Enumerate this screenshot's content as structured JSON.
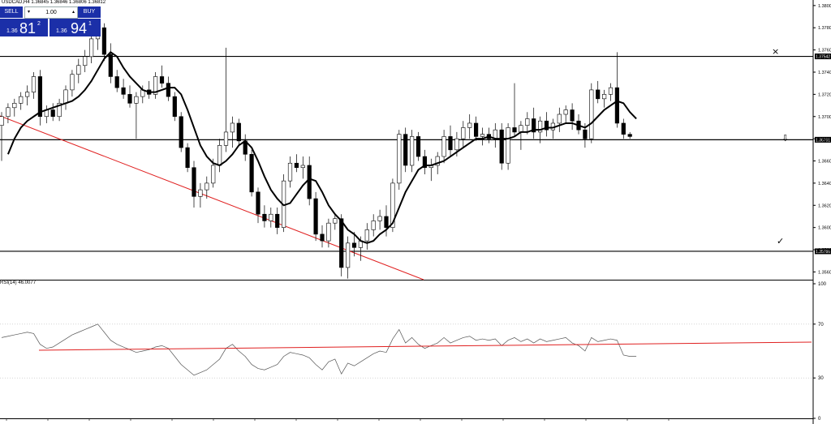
{
  "header": {
    "ticker": "USDCAD,H4  1.36845 1.36846 1.36806 1.36812"
  },
  "trade_panel": {
    "sell_label": "SELL",
    "buy_label": "BUY",
    "quantity": "1.00",
    "sell_price_small": "1.36",
    "sell_price_big": "81",
    "sell_price_sup": "2",
    "buy_price_small": "1.36",
    "buy_price_big": "94",
    "buy_price_sup": "1"
  },
  "indicator": {
    "label": "RSI(14) 46.0077",
    "levels": [
      "100",
      "70",
      "30",
      "0"
    ]
  },
  "markers": {
    "top_marker": "×",
    "bottom_marker": "✓",
    "mid_marker": "⇩"
  },
  "chart_data": {
    "type": "candlestick",
    "symbol": "USDCAD",
    "timeframe": "H4",
    "price_axis_ticks": [
      "1.38000",
      "1.37800",
      "1.37600",
      "1.37400",
      "1.37200",
      "1.37005",
      "1.36805",
      "1.36605",
      "1.36405",
      "1.36205",
      "1.36005",
      "1.35805",
      "1.35605"
    ],
    "horizontal_levels": [
      {
        "price": 1.37542,
        "label": "1.37542"
      },
      {
        "price": 1.36791,
        "label": "1.36791"
      },
      {
        "price": 1.35786,
        "label": "1.35786"
      }
    ],
    "rsi_levels": [
      100,
      70,
      30,
      0
    ],
    "rsi_current": 46.0077,
    "candles": [
      [
        1.3692,
        1.3704,
        1.366,
        1.37
      ],
      [
        1.37,
        1.3712,
        1.3694,
        1.3708
      ],
      [
        1.3708,
        1.3716,
        1.37,
        1.3712
      ],
      [
        1.3712,
        1.3722,
        1.3706,
        1.3718
      ],
      [
        1.3718,
        1.3728,
        1.371,
        1.3722
      ],
      [
        1.3722,
        1.374,
        1.3716,
        1.3736
      ],
      [
        1.3736,
        1.3742,
        1.3692,
        1.37
      ],
      [
        1.37,
        1.371,
        1.3694,
        1.3706
      ],
      [
        1.3706,
        1.3712,
        1.3696,
        1.37
      ],
      [
        1.37,
        1.3716,
        1.3696,
        1.3712
      ],
      [
        1.3712,
        1.3728,
        1.3706,
        1.3724
      ],
      [
        1.3724,
        1.3742,
        1.3718,
        1.3738
      ],
      [
        1.3738,
        1.3752,
        1.373,
        1.3746
      ],
      [
        1.3746,
        1.376,
        1.374,
        1.3754
      ],
      [
        1.3754,
        1.3776,
        1.3748,
        1.377
      ],
      [
        1.377,
        1.3786,
        1.376,
        1.378
      ],
      [
        1.378,
        1.3784,
        1.375,
        1.3756
      ],
      [
        1.3756,
        1.3766,
        1.373,
        1.3736
      ],
      [
        1.3736,
        1.3742,
        1.3722,
        1.3726
      ],
      [
        1.3726,
        1.3734,
        1.3716,
        1.372
      ],
      [
        1.372,
        1.3728,
        1.3708,
        1.3712
      ],
      [
        1.3712,
        1.3722,
        1.368,
        1.3718
      ],
      [
        1.3718,
        1.3728,
        1.3712,
        1.3724
      ],
      [
        1.3724,
        1.3732,
        1.3716,
        1.372
      ],
      [
        1.372,
        1.374,
        1.3716,
        1.3736
      ],
      [
        1.3736,
        1.3746,
        1.3726,
        1.373
      ],
      [
        1.373,
        1.3736,
        1.3714,
        1.3718
      ],
      [
        1.3718,
        1.3722,
        1.3696,
        1.37
      ],
      [
        1.37,
        1.3704,
        1.3668,
        1.3672
      ],
      [
        1.3672,
        1.3676,
        1.365,
        1.3654
      ],
      [
        1.3654,
        1.366,
        1.3618,
        1.3628
      ],
      [
        1.3628,
        1.364,
        1.3618,
        1.3634
      ],
      [
        1.3634,
        1.3646,
        1.3626,
        1.364
      ],
      [
        1.364,
        1.3662,
        1.3636,
        1.3656
      ],
      [
        1.3656,
        1.368,
        1.365,
        1.3674
      ],
      [
        1.3674,
        1.3762,
        1.3668,
        1.3686
      ],
      [
        1.3686,
        1.37,
        1.3672,
        1.3694
      ],
      [
        1.3694,
        1.3698,
        1.3674,
        1.3678
      ],
      [
        1.3678,
        1.3684,
        1.366,
        1.3666
      ],
      [
        1.3666,
        1.367,
        1.3628,
        1.3632
      ],
      [
        1.3632,
        1.3636,
        1.3604,
        1.3612
      ],
      [
        1.3612,
        1.362,
        1.36,
        1.3606
      ],
      [
        1.3606,
        1.3618,
        1.36,
        1.3612
      ],
      [
        1.3612,
        1.3618,
        1.3594,
        1.36
      ],
      [
        1.36,
        1.3648,
        1.3596,
        1.3642
      ],
      [
        1.3642,
        1.3664,
        1.3636,
        1.3658
      ],
      [
        1.3658,
        1.3666,
        1.365,
        1.3654
      ],
      [
        1.3654,
        1.3664,
        1.3644,
        1.3656
      ],
      [
        1.3656,
        1.3664,
        1.362,
        1.3626
      ],
      [
        1.3626,
        1.3632,
        1.3588,
        1.3594
      ],
      [
        1.3594,
        1.3602,
        1.3582,
        1.3588
      ],
      [
        1.3588,
        1.3608,
        1.3582,
        1.3604
      ],
      [
        1.3604,
        1.3612,
        1.3598,
        1.3608
      ],
      [
        1.3608,
        1.3612,
        1.3556,
        1.3564
      ],
      [
        1.3564,
        1.3592,
        1.3554,
        1.3586
      ],
      [
        1.3586,
        1.3596,
        1.3574,
        1.3582
      ],
      [
        1.3582,
        1.3592,
        1.357,
        1.3588
      ],
      [
        1.3588,
        1.3604,
        1.358,
        1.3598
      ],
      [
        1.3598,
        1.3612,
        1.3592,
        1.3606
      ],
      [
        1.3606,
        1.3616,
        1.3598,
        1.361
      ],
      [
        1.361,
        1.362,
        1.3592,
        1.36
      ],
      [
        1.36,
        1.3644,
        1.3596,
        1.364
      ],
      [
        1.364,
        1.3688,
        1.3634,
        1.3684
      ],
      [
        1.3684,
        1.369,
        1.365,
        1.3656
      ],
      [
        1.3656,
        1.3688,
        1.365,
        1.3682
      ],
      [
        1.3682,
        1.3686,
        1.366,
        1.3664
      ],
      [
        1.3664,
        1.367,
        1.3648,
        1.3654
      ],
      [
        1.3654,
        1.3662,
        1.3642,
        1.3656
      ],
      [
        1.3656,
        1.3668,
        1.3648,
        1.3664
      ],
      [
        1.3664,
        1.3688,
        1.3658,
        1.3682
      ],
      [
        1.3682,
        1.3692,
        1.3664,
        1.367
      ],
      [
        1.367,
        1.3686,
        1.3664,
        1.368
      ],
      [
        1.368,
        1.3696,
        1.3672,
        1.369
      ],
      [
        1.369,
        1.3702,
        1.368,
        1.3694
      ],
      [
        1.3694,
        1.37,
        1.3678,
        1.3682
      ],
      [
        1.3682,
        1.369,
        1.3674,
        1.3684
      ],
      [
        1.3684,
        1.369,
        1.3676,
        1.368
      ],
      [
        1.368,
        1.3694,
        1.3672,
        1.3688
      ],
      [
        1.3688,
        1.3694,
        1.3652,
        1.3658
      ],
      [
        1.3658,
        1.3694,
        1.3652,
        1.369
      ],
      [
        1.369,
        1.373,
        1.3682,
        1.3686
      ],
      [
        1.3686,
        1.3696,
        1.367,
        1.3692
      ],
      [
        1.3692,
        1.3704,
        1.3684,
        1.3698
      ],
      [
        1.3698,
        1.3708,
        1.368,
        1.3686
      ],
      [
        1.3686,
        1.37,
        1.3676,
        1.3696
      ],
      [
        1.3696,
        1.3704,
        1.3682,
        1.3688
      ],
      [
        1.3688,
        1.3698,
        1.368,
        1.3694
      ],
      [
        1.3694,
        1.3708,
        1.3686,
        1.3702
      ],
      [
        1.3702,
        1.371,
        1.3694,
        1.3706
      ],
      [
        1.3706,
        1.3712,
        1.3688,
        1.3696
      ],
      [
        1.3696,
        1.3702,
        1.3684,
        1.3688
      ],
      [
        1.3688,
        1.3694,
        1.3672,
        1.368
      ],
      [
        1.368,
        1.373,
        1.3676,
        1.3724
      ],
      [
        1.3724,
        1.3732,
        1.3712,
        1.3716
      ],
      [
        1.3716,
        1.3724,
        1.3708,
        1.372
      ],
      [
        1.372,
        1.373,
        1.3714,
        1.3726
      ],
      [
        1.3726,
        1.3758,
        1.369,
        1.3694
      ],
      [
        1.3694,
        1.3698,
        1.368,
        1.3684
      ],
      [
        1.3684,
        1.3686,
        1.368,
        1.3682
      ]
    ],
    "moving_average": [
      1.3666,
      1.368,
      1.369,
      1.3696,
      1.37,
      1.3704,
      1.3706,
      1.3708,
      1.371,
      1.3712,
      1.3714,
      1.3718,
      1.3724,
      1.3732,
      1.3742,
      1.3752,
      1.3758,
      1.3754,
      1.3744,
      1.3736,
      1.373,
      1.3724,
      1.3722,
      1.3722,
      1.3724,
      1.3726,
      1.3726,
      1.372,
      1.3706,
      1.369,
      1.3674,
      1.3664,
      1.3658,
      1.3656,
      1.366,
      1.3666,
      1.3674,
      1.3678,
      1.3672,
      1.366,
      1.3646,
      1.3634,
      1.3626,
      1.362,
      1.3622,
      1.363,
      1.3638,
      1.3644,
      1.3642,
      1.3632,
      1.362,
      1.3612,
      1.3606,
      1.3598,
      1.3594,
      1.3588,
      1.3586,
      1.3588,
      1.3594,
      1.3598,
      1.3604,
      1.3618,
      1.3632,
      1.3642,
      1.3652,
      1.3656,
      1.3656,
      1.3658,
      1.366,
      1.3664,
      1.3668,
      1.3672,
      1.3676,
      1.368,
      1.368,
      1.3682,
      1.368,
      1.368,
      1.368,
      1.3682,
      1.3686,
      1.3686,
      1.3688,
      1.3688,
      1.369,
      1.369,
      1.3692,
      1.3694,
      1.3694,
      1.3692,
      1.369,
      1.3694,
      1.37,
      1.3706,
      1.371,
      1.3714,
      1.3712,
      1.3704,
      1.3698
    ],
    "rsi": [
      60,
      61,
      62,
      63,
      64,
      63,
      55,
      52,
      53,
      56,
      59,
      62,
      64,
      66,
      68,
      70,
      64,
      58,
      55,
      53,
      51,
      49,
      50,
      51,
      53,
      54,
      52,
      46,
      40,
      36,
      32,
      34,
      36,
      40,
      44,
      52,
      55,
      50,
      46,
      40,
      37,
      36,
      38,
      40,
      46,
      49,
      48,
      47,
      45,
      40,
      36,
      42,
      44,
      33,
      41,
      39,
      42,
      45,
      48,
      50,
      49,
      59,
      66,
      56,
      60,
      55,
      52,
      54,
      56,
      60,
      56,
      58,
      60,
      61,
      58,
      59,
      58,
      59,
      54,
      58,
      60,
      57,
      59,
      56,
      59,
      57,
      58,
      59,
      60,
      56,
      54,
      50,
      60,
      57,
      58,
      59,
      58,
      47,
      46,
      46
    ]
  }
}
